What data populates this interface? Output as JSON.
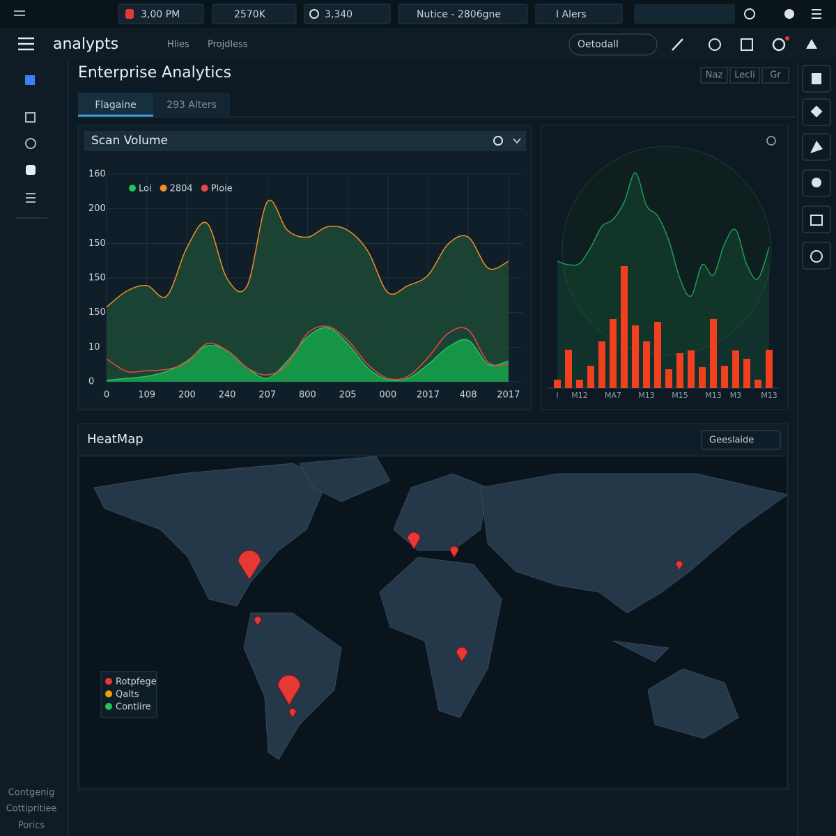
{
  "topbar": {
    "items": [
      "3,00 PM",
      "2570K",
      "3,340",
      "Nutice - 2806gne",
      "I Alers"
    ]
  },
  "nav": {
    "brand": "analypts",
    "links": [
      "Hlies",
      "Projdless"
    ],
    "select": "Oetodall"
  },
  "sidebar": {
    "footer": [
      "Contgenig",
      "Cottipritiee",
      "Porics"
    ]
  },
  "page": {
    "title": "Enterprise Analytics",
    "tabs": [
      "Flagaine",
      "293 Alters"
    ],
    "actions": [
      "Naz",
      "Lecli",
      "Gr"
    ]
  },
  "chart_data": [
    {
      "type": "line",
      "title": "Scan Volume",
      "x": [
        0,
        50,
        100,
        150,
        200,
        250,
        300,
        350,
        400,
        450,
        500,
        550,
        600,
        650,
        700,
        750,
        800,
        850,
        900,
        950,
        1000
      ],
      "series": [
        {
          "name": "Loi",
          "color": "#22c55e",
          "fill": "#16a34a",
          "values": [
            2,
            5,
            8,
            15,
            30,
            52,
            45,
            20,
            5,
            30,
            65,
            78,
            55,
            20,
            3,
            5,
            25,
            50,
            60,
            25,
            30
          ]
        },
        {
          "name": "2804",
          "color": "#f28c28",
          "fill": "#1c4a35",
          "values": [
            108,
            131,
            139,
            124,
            194,
            229,
            149,
            139,
            260,
            219,
            209,
            224,
            219,
            189,
            129,
            139,
            154,
            199,
            209,
            164,
            174
          ]
        },
        {
          "name": "Ploie",
          "color": "#ef4444",
          "values": [
            33,
            15,
            16,
            18,
            28,
            55,
            45,
            20,
            10,
            25,
            70,
            80,
            60,
            25,
            5,
            8,
            35,
            70,
            75,
            28,
            25
          ]
        }
      ],
      "xlim": [
        0,
        1035
      ],
      "xticks": [
        0,
        {
          "value": 100,
          "label": "109"
        },
        200,
        {
          "value": 300,
          "label": "240"
        },
        {
          "value": 400,
          "label": "207"
        },
        {
          "value": 500,
          "label": "800"
        },
        {
          "value": 600,
          "label": "205"
        },
        {
          "value": 700,
          "label": "000"
        },
        {
          "value": 800,
          "label": "2017"
        },
        {
          "value": 900,
          "label": "408"
        },
        {
          "value": 1000,
          "label": "2017"
        }
      ],
      "ylim": [
        0,
        300
      ],
      "yticks": [
        0,
        {
          "value": 50,
          "label": "10"
        },
        {
          "value": 100,
          "label": "150"
        },
        150,
        {
          "value": 200,
          "label": "150"
        },
        {
          "value": 250,
          "label": "200"
        },
        {
          "value": 300,
          "label": "160"
        }
      ],
      "grid": true
    },
    {
      "type": "bar",
      "categories": [
        "l",
        null,
        "M12",
        null,
        null,
        "MA7",
        null,
        null,
        "M13",
        null,
        null,
        "M15",
        null,
        null,
        "M13",
        null,
        "M3",
        null,
        null,
        "M13"
      ],
      "values": [
        12,
        55,
        12,
        32,
        67,
        99,
        175,
        90,
        67,
        95,
        27,
        50,
        54,
        30,
        99,
        32,
        54,
        42,
        12,
        55
      ],
      "color": "#f0401f",
      "line": {
        "color": "#1f9a55",
        "values": [
          182,
          177,
          179,
          202,
          232,
          242,
          267,
          309,
          262,
          247,
          212,
          157,
          132,
          177,
          162,
          207,
          227,
          177,
          157,
          202
        ]
      }
    }
  ],
  "heatmap": {
    "title": "HeatMap",
    "select": "Geeslaide",
    "legend": [
      {
        "label": "Rotpfege",
        "color": "#e53935"
      },
      {
        "label": "Qalts",
        "color": "#f59e0b"
      },
      {
        "label": "Contiire",
        "color": "#22c55e"
      }
    ]
  }
}
